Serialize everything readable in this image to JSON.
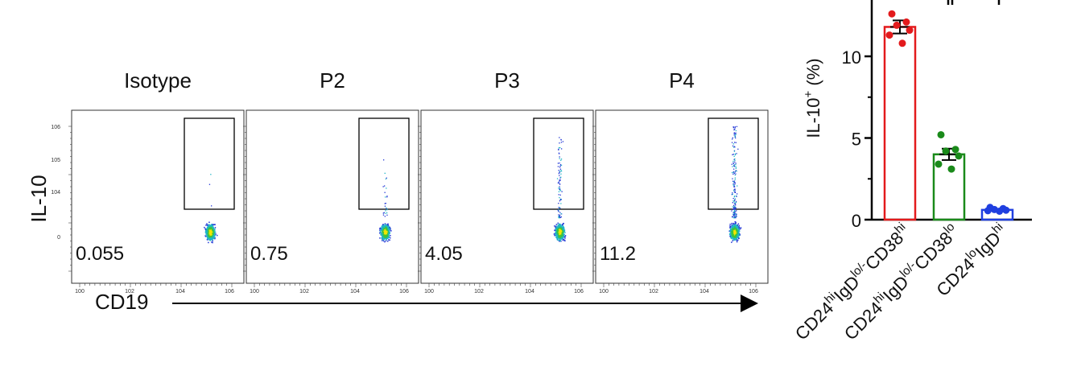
{
  "flow": {
    "x_axis_label": "CD19",
    "y_axis_label": "IL-10",
    "x_tick_labels": [
      "10^0",
      "10^2",
      "10^4",
      "10^6"
    ],
    "y_tick_labels": [
      "0",
      "10^4",
      "10^5",
      "10^6"
    ],
    "panels": [
      {
        "title": "Isotype",
        "percent": "0.055"
      },
      {
        "title": "P2",
        "percent": "0.75"
      },
      {
        "title": "P3",
        "percent": "4.05"
      },
      {
        "title": "P4",
        "percent": "11.2"
      }
    ]
  },
  "chart_data": [
    {
      "type": "scatter",
      "title": "",
      "note": "Flow cytometry density dot plots (CD19 vs IL-10) with gated IL-10+ percentages",
      "xlabel": "CD19",
      "ylabel": "IL-10",
      "categories": [
        "Isotype",
        "P2",
        "P3",
        "P4"
      ],
      "values": [
        0.055,
        0.75,
        4.05,
        11.2
      ]
    },
    {
      "type": "bar",
      "title": "",
      "ylabel": "IL-10+ (%)",
      "ylabel_main": "IL-10",
      "ylabel_sup": "+",
      "ylabel_suffix": "(%)",
      "ylim": [
        0,
        13.5
      ],
      "y_ticks": [
        0,
        5,
        10
      ],
      "categories": [
        "CD24hiIgDlo/-CD38hi",
        "CD24hiIgDlo/-CD38lo",
        "CD24loIgDhi"
      ],
      "category_parts": [
        [
          [
            "CD24",
            ""
          ],
          [
            "hi",
            "sup"
          ],
          [
            "IgD",
            ""
          ],
          [
            "lo/-",
            "sup"
          ],
          [
            "CD38",
            ""
          ],
          [
            "hi",
            "sup"
          ]
        ],
        [
          [
            "CD24",
            ""
          ],
          [
            "hi",
            "sup"
          ],
          [
            "IgD",
            ""
          ],
          [
            "lo/-",
            "sup"
          ],
          [
            "CD38",
            ""
          ],
          [
            "lo",
            "sup"
          ]
        ],
        [
          [
            "CD24",
            ""
          ],
          [
            "lo",
            "sup"
          ],
          [
            "IgD",
            ""
          ],
          [
            "hi",
            "sup"
          ]
        ]
      ],
      "values": [
        11.8,
        4.0,
        0.6
      ],
      "sem": [
        0.4,
        0.35,
        0.05
      ],
      "colors": [
        "#e31a1c",
        "#1a8a1a",
        "#1f3fe0"
      ],
      "points": [
        [
          12.6,
          12.1,
          11.9,
          11.6,
          11.3,
          10.8
        ],
        [
          5.2,
          4.3,
          4.2,
          3.9,
          3.4,
          3.1
        ],
        [
          0.75,
          0.68,
          0.62,
          0.58,
          0.55,
          0.52
        ]
      ]
    }
  ]
}
